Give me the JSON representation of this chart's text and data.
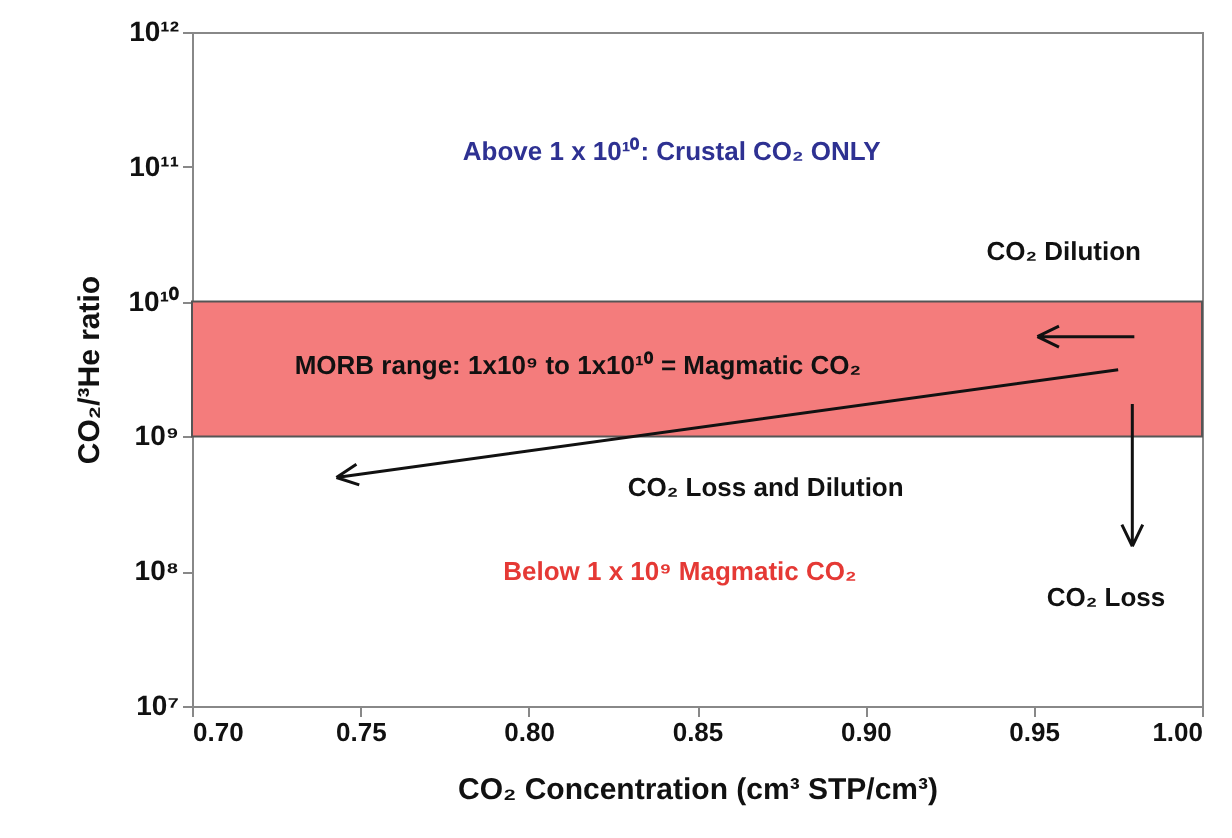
{
  "chart_data": {
    "type": "line",
    "xlabel": "CO₂ Concentration (cm³ STP/cm³)",
    "ylabel": "CO₂/³He ratio",
    "log": "y",
    "xlim": [
      0.7,
      1.0
    ],
    "xticks": [
      {
        "value": 0.7,
        "label": "0.70"
      },
      {
        "value": 0.75,
        "label": "0.75"
      },
      {
        "value": 0.8,
        "label": "0.80"
      },
      {
        "value": 0.85,
        "label": "0.85"
      },
      {
        "value": 0.9,
        "label": "0.90"
      },
      {
        "value": 0.95,
        "label": "0.95"
      },
      {
        "value": 1.0,
        "label": "1.00"
      }
    ],
    "ylim": [
      10000000,
      1000000000000
    ],
    "yticks": [
      {
        "value": 10000000,
        "label": "10⁷"
      },
      {
        "value": 100000000,
        "label": "10⁸"
      },
      {
        "value": 1000000000,
        "label": "10⁹"
      },
      {
        "value": 10000000000,
        "label": "10¹⁰"
      },
      {
        "value": 100000000000,
        "label": "10¹¹"
      },
      {
        "value": 1000000000000,
        "label": "10¹²"
      }
    ],
    "bands": [
      {
        "axis": "y",
        "from": 1000000000,
        "to": 10000000000,
        "color": "#f47c7c"
      }
    ],
    "annotations": [
      "Above 1 x 10¹⁰: Crustal CO₂ ONLY",
      "CO₂ Dilution",
      "MORB range: 1x10⁹ to 1x10¹⁰ = Magmatic CO₂",
      "CO₂  Loss and Dilution",
      "Below  1 x 10⁹ Magmatic CO₂",
      "CO₂ Loss"
    ]
  }
}
